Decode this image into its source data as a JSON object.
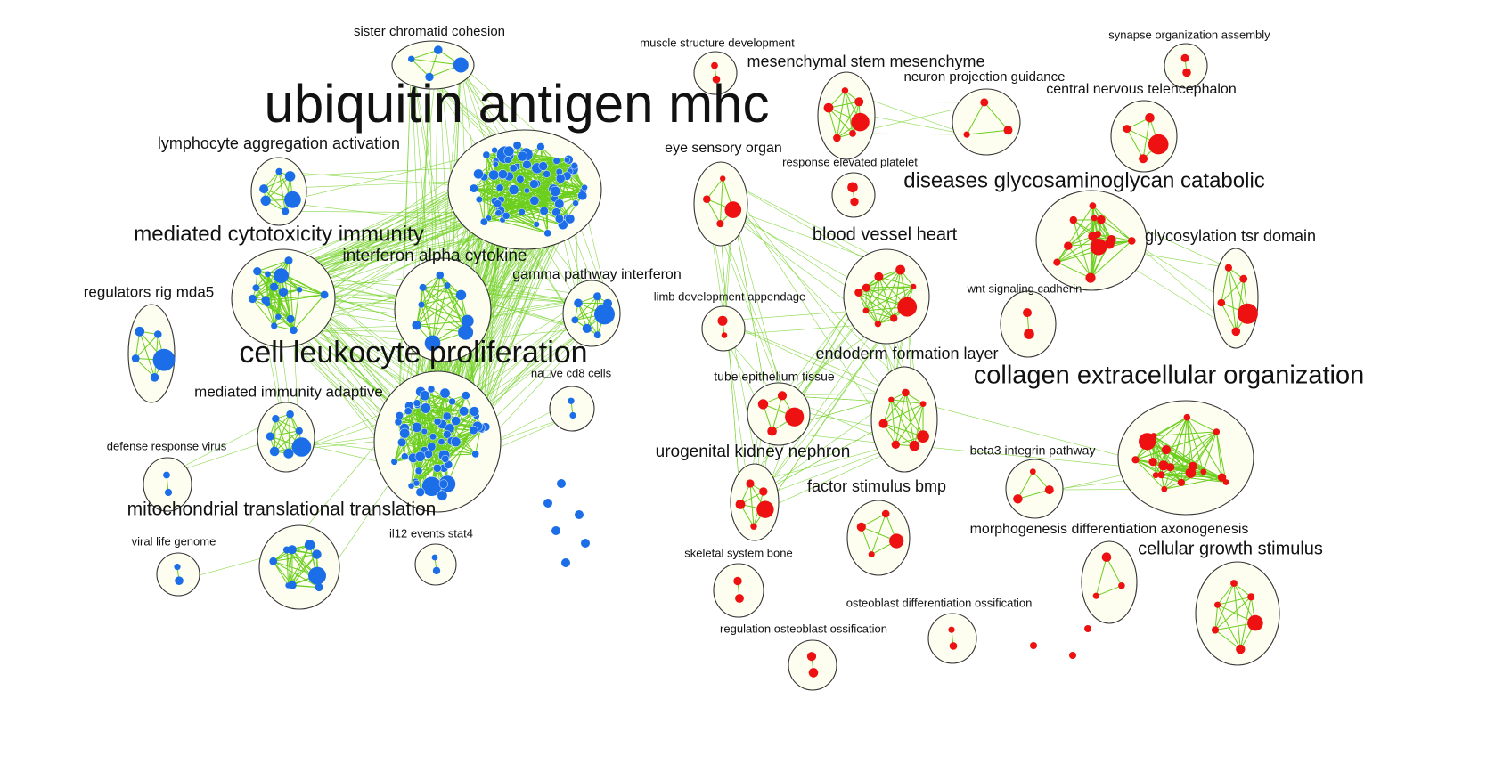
{
  "colors": {
    "blue": "#1b6ee8",
    "red": "#ee1111",
    "edge": "#6ccf1e",
    "fill": "#fdfdf0"
  },
  "clusters": [
    {
      "id": "sister",
      "label": "sister chromatid cohesion",
      "color": "blue",
      "nodes": 4
    },
    {
      "id": "ubiq",
      "label": "ubiquitin antigen mhc",
      "color": "blue",
      "nodes": 70
    },
    {
      "id": "lymph",
      "label": "lymphocyte aggregation activation",
      "color": "blue",
      "nodes": 6
    },
    {
      "id": "medcyto",
      "label": "mediated cytotoxicity immunity",
      "color": "blue",
      "nodes": 18
    },
    {
      "id": "ifnalpha",
      "label": "interferon alpha cytokine",
      "color": "blue",
      "nodes": 9
    },
    {
      "id": "gamma",
      "label": "gamma pathway interferon",
      "color": "blue",
      "nodes": 7
    },
    {
      "id": "rig",
      "label": "regulators rig mda5",
      "color": "blue",
      "nodes": 5
    },
    {
      "id": "cellleuk",
      "label": "cell leukocyte proliferation",
      "color": "blue",
      "nodes": 60
    },
    {
      "id": "naive",
      "label": "na□ve cd8 cells",
      "color": "blue",
      "nodes": 2
    },
    {
      "id": "medadapt",
      "label": "mediated immunity adaptive",
      "color": "blue",
      "nodes": 7
    },
    {
      "id": "defense",
      "label": "defense response virus",
      "color": "blue",
      "nodes": 2
    },
    {
      "id": "mito",
      "label": "mitochondrial translational translation",
      "color": "blue",
      "nodes": 9
    },
    {
      "id": "viral",
      "label": "viral life genome",
      "color": "blue",
      "nodes": 2
    },
    {
      "id": "il12",
      "label": "il12 events stat4",
      "color": "blue",
      "nodes": 2
    },
    {
      "id": "muscle",
      "label": "muscle structure development",
      "color": "red",
      "nodes": 2
    },
    {
      "id": "mesench",
      "label": "mesenchymal stem mesenchyme",
      "color": "red",
      "nodes": 6
    },
    {
      "id": "neuron",
      "label": "neuron projection guidance",
      "color": "red",
      "nodes": 3
    },
    {
      "id": "synapse",
      "label": "synapse organization assembly",
      "color": "red",
      "nodes": 2
    },
    {
      "id": "cns",
      "label": "central nervous telencephalon",
      "color": "red",
      "nodes": 4
    },
    {
      "id": "eye",
      "label": "eye sensory organ",
      "color": "red",
      "nodes": 4
    },
    {
      "id": "platelet",
      "label": "response elevated platelet",
      "color": "red",
      "nodes": 2
    },
    {
      "id": "gag",
      "label": "diseases glycosaminoglycan catabolic",
      "color": "red",
      "nodes": 14
    },
    {
      "id": "glyco",
      "label": "glycosylation tsr domain",
      "color": "red",
      "nodes": 5
    },
    {
      "id": "blood",
      "label": "blood vessel heart",
      "color": "red",
      "nodes": 9
    },
    {
      "id": "limb",
      "label": "limb development appendage",
      "color": "red",
      "nodes": 2
    },
    {
      "id": "wnt",
      "label": "wnt signaling cadherin",
      "color": "red",
      "nodes": 2
    },
    {
      "id": "endoderm",
      "label": "endoderm formation layer",
      "color": "red",
      "nodes": 7
    },
    {
      "id": "tube",
      "label": "tube epithelium tissue",
      "color": "red",
      "nodes": 4
    },
    {
      "id": "collagen",
      "label": "collagen extracellular organization",
      "color": "red",
      "nodes": 18
    },
    {
      "id": "urogen",
      "label": "urogenital kidney nephron",
      "color": "red",
      "nodes": 5
    },
    {
      "id": "beta3",
      "label": "beta3 integrin pathway",
      "color": "red",
      "nodes": 3
    },
    {
      "id": "bmp",
      "label": "factor stimulus bmp",
      "color": "red",
      "nodes": 4
    },
    {
      "id": "morpho",
      "label": "morphogenesis differentiation axonogenesis",
      "color": "red",
      "nodes": 3
    },
    {
      "id": "growth",
      "label": "cellular growth stimulus",
      "color": "red",
      "nodes": 6
    },
    {
      "id": "skeletal",
      "label": "skeletal system bone",
      "color": "red",
      "nodes": 2
    },
    {
      "id": "osteodiff",
      "label": "osteoblast differentiation ossification",
      "color": "red",
      "nodes": 2
    },
    {
      "id": "osteoreg",
      "label": "regulation osteoblast ossification",
      "color": "red",
      "nodes": 2
    }
  ],
  "singletons": [
    {
      "color": "blue",
      "count": 6
    },
    {
      "color": "red",
      "count": 3
    }
  ]
}
